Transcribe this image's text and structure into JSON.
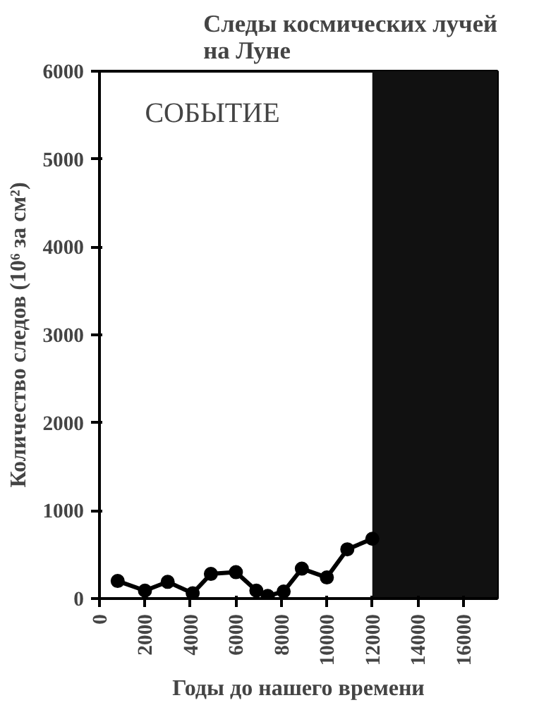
{
  "chart_data": {
    "type": "line",
    "title": "Следы космических лучей\nна Луне",
    "xlabel": "Годы до нашего времени",
    "ylabel": "Количество следов (10⁶ за см²)",
    "x": [
      800,
      2000,
      3000,
      4100,
      4900,
      6000,
      6900,
      7400,
      8100,
      8900,
      10000,
      10900,
      12000
    ],
    "series": [
      {
        "color": "#000000",
        "values": [
          200,
          90,
          190,
          60,
          280,
          300,
          90,
          30,
          80,
          340,
          240,
          560,
          680
        ]
      }
    ],
    "marker": "circle",
    "line_style": "solid",
    "grid": false,
    "xlim": [
      0,
      17500
    ],
    "ylim": [
      0,
      6000
    ],
    "xticks": [
      0,
      2000,
      4000,
      6000,
      8000,
      10000,
      12000,
      14000,
      16000
    ],
    "yticks": [
      0,
      1000,
      2000,
      3000,
      4000,
      5000,
      6000
    ],
    "bands": [
      {
        "axis": "x",
        "from": 12000,
        "to": 17500,
        "color": "#111111"
      }
    ],
    "annotations": [
      "СОБЫТИЕ"
    ]
  }
}
